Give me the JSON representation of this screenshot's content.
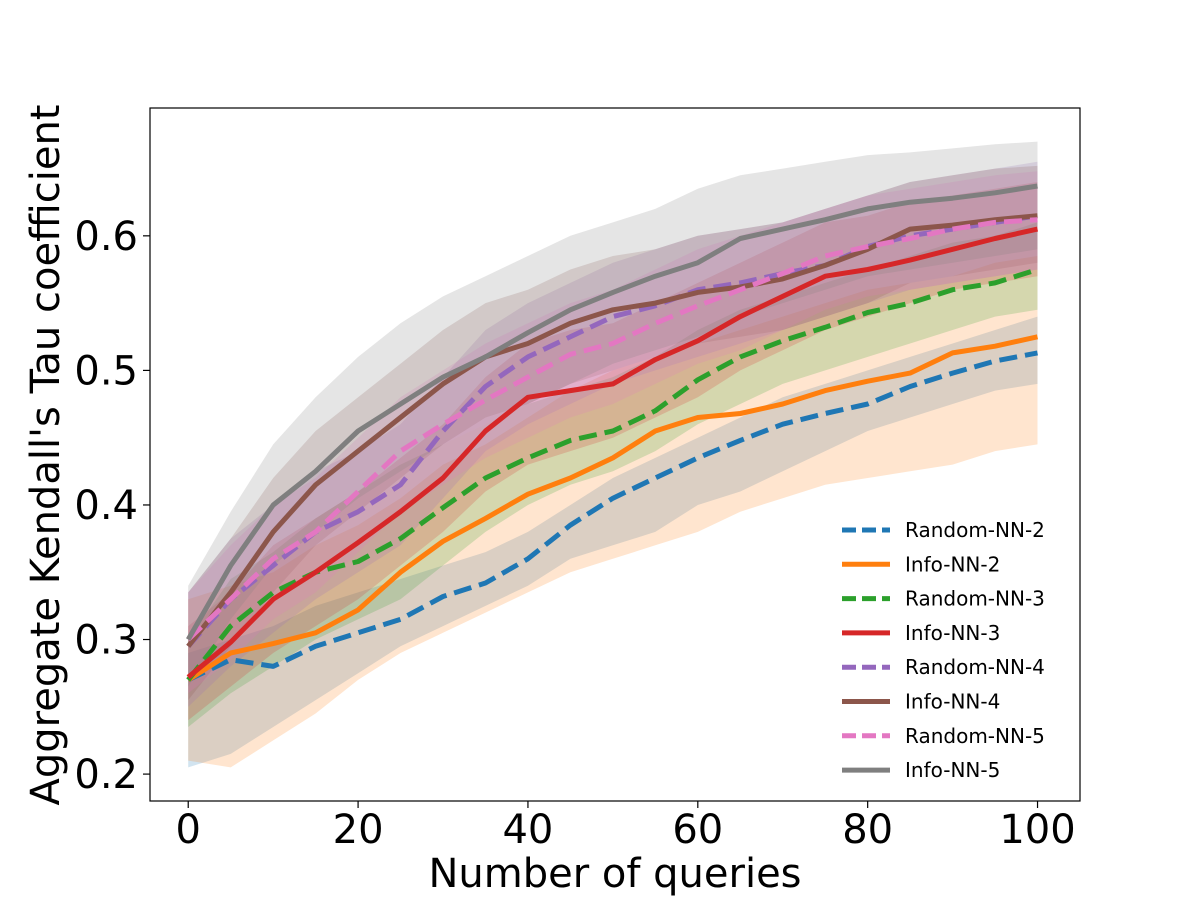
{
  "chart_data": {
    "type": "line",
    "title": "",
    "xlabel": "Number of queries",
    "ylabel": "Aggregate Kendall's Tau coefficient",
    "xlim": [
      -4.5,
      105
    ],
    "ylim": [
      0.18,
      0.695
    ],
    "xticks": [
      0,
      20,
      40,
      60,
      80,
      100
    ],
    "yticks": [
      0.2,
      0.3,
      0.4,
      0.5,
      0.6
    ],
    "xtick_labels": [
      "0",
      "20",
      "40",
      "60",
      "80",
      "100"
    ],
    "ytick_labels": [
      "0.2",
      "0.3",
      "0.4",
      "0.5",
      "0.6"
    ],
    "grid": false,
    "legend_position": "lower-right",
    "x": [
      0,
      5,
      10,
      15,
      20,
      25,
      30,
      35,
      40,
      45,
      50,
      55,
      60,
      65,
      70,
      75,
      80,
      85,
      90,
      95,
      100
    ],
    "series": [
      {
        "name": "Random-NN-2",
        "color": "#1f77b4",
        "dash": true,
        "values": [
          0.27,
          0.285,
          0.28,
          0.295,
          0.305,
          0.315,
          0.332,
          0.342,
          0.36,
          0.385,
          0.405,
          0.42,
          0.435,
          0.448,
          0.46,
          0.468,
          0.475,
          0.488,
          0.498,
          0.507,
          0.513
        ],
        "lower": [
          0.205,
          0.215,
          0.235,
          0.255,
          0.275,
          0.295,
          0.31,
          0.325,
          0.34,
          0.36,
          0.37,
          0.38,
          0.4,
          0.41,
          0.425,
          0.44,
          0.455,
          0.465,
          0.475,
          0.485,
          0.49
        ],
        "upper": [
          0.29,
          0.3,
          0.31,
          0.325,
          0.335,
          0.345,
          0.355,
          0.365,
          0.38,
          0.4,
          0.42,
          0.435,
          0.45,
          0.465,
          0.48,
          0.49,
          0.5,
          0.51,
          0.52,
          0.53,
          0.54
        ]
      },
      {
        "name": "Info-NN-2",
        "color": "#ff7f0e",
        "dash": false,
        "values": [
          0.27,
          0.29,
          0.297,
          0.305,
          0.322,
          0.35,
          0.373,
          0.39,
          0.408,
          0.42,
          0.435,
          0.455,
          0.465,
          0.468,
          0.475,
          0.485,
          0.492,
          0.498,
          0.513,
          0.518,
          0.525
        ],
        "lower": [
          0.21,
          0.205,
          0.225,
          0.245,
          0.27,
          0.29,
          0.305,
          0.32,
          0.335,
          0.35,
          0.36,
          0.37,
          0.38,
          0.395,
          0.405,
          0.415,
          0.42,
          0.425,
          0.43,
          0.44,
          0.445
        ],
        "upper": [
          0.33,
          0.34,
          0.35,
          0.37,
          0.385,
          0.405,
          0.43,
          0.445,
          0.465,
          0.485,
          0.5,
          0.51,
          0.52,
          0.53,
          0.54,
          0.55,
          0.56,
          0.565,
          0.57,
          0.58,
          0.585
        ]
      },
      {
        "name": "Random-NN-3",
        "color": "#2ca02c",
        "dash": true,
        "values": [
          0.27,
          0.31,
          0.335,
          0.35,
          0.358,
          0.375,
          0.398,
          0.42,
          0.435,
          0.448,
          0.455,
          0.47,
          0.493,
          0.51,
          0.522,
          0.532,
          0.543,
          0.55,
          0.56,
          0.565,
          0.575
        ],
        "lower": [
          0.235,
          0.26,
          0.28,
          0.3,
          0.315,
          0.33,
          0.355,
          0.38,
          0.4,
          0.415,
          0.425,
          0.44,
          0.46,
          0.475,
          0.49,
          0.5,
          0.51,
          0.52,
          0.53,
          0.54,
          0.545
        ],
        "upper": [
          0.3,
          0.345,
          0.365,
          0.39,
          0.41,
          0.43,
          0.445,
          0.46,
          0.475,
          0.485,
          0.495,
          0.51,
          0.53,
          0.545,
          0.555,
          0.565,
          0.575,
          0.585,
          0.595,
          0.6,
          0.61
        ]
      },
      {
        "name": "Info-NN-3",
        "color": "#d62728",
        "dash": false,
        "values": [
          0.272,
          0.298,
          0.33,
          0.35,
          0.372,
          0.395,
          0.42,
          0.455,
          0.48,
          0.485,
          0.49,
          0.508,
          0.522,
          0.54,
          0.555,
          0.57,
          0.575,
          0.582,
          0.59,
          0.598,
          0.605
        ],
        "lower": [
          0.24,
          0.265,
          0.29,
          0.31,
          0.33,
          0.355,
          0.38,
          0.41,
          0.43,
          0.44,
          0.45,
          0.465,
          0.48,
          0.5,
          0.515,
          0.53,
          0.54,
          0.55,
          0.56,
          0.565,
          0.57
        ],
        "upper": [
          0.31,
          0.335,
          0.37,
          0.39,
          0.41,
          0.435,
          0.46,
          0.495,
          0.52,
          0.53,
          0.535,
          0.55,
          0.565,
          0.58,
          0.595,
          0.61,
          0.615,
          0.625,
          0.63,
          0.635,
          0.64
        ]
      },
      {
        "name": "Random-NN-4",
        "color": "#9467bd",
        "dash": true,
        "values": [
          0.295,
          0.33,
          0.355,
          0.38,
          0.395,
          0.415,
          0.455,
          0.488,
          0.51,
          0.525,
          0.54,
          0.548,
          0.56,
          0.565,
          0.572,
          0.578,
          0.592,
          0.6,
          0.605,
          0.61,
          0.615
        ],
        "lower": [
          0.25,
          0.28,
          0.305,
          0.33,
          0.35,
          0.37,
          0.405,
          0.44,
          0.46,
          0.475,
          0.49,
          0.5,
          0.51,
          0.52,
          0.53,
          0.54,
          0.55,
          0.56,
          0.565,
          0.57,
          0.575
        ],
        "upper": [
          0.335,
          0.375,
          0.4,
          0.425,
          0.44,
          0.46,
          0.495,
          0.53,
          0.55,
          0.565,
          0.58,
          0.59,
          0.6,
          0.605,
          0.61,
          0.62,
          0.63,
          0.64,
          0.645,
          0.65,
          0.655
        ]
      },
      {
        "name": "Info-NN-4",
        "color": "#8c564b",
        "dash": false,
        "values": [
          0.295,
          0.335,
          0.38,
          0.415,
          0.44,
          0.465,
          0.49,
          0.51,
          0.52,
          0.535,
          0.545,
          0.55,
          0.558,
          0.562,
          0.568,
          0.578,
          0.59,
          0.605,
          0.608,
          0.612,
          0.615
        ],
        "lower": [
          0.255,
          0.295,
          0.335,
          0.37,
          0.395,
          0.42,
          0.445,
          0.465,
          0.475,
          0.49,
          0.5,
          0.51,
          0.52,
          0.525,
          0.53,
          0.54,
          0.55,
          0.565,
          0.57,
          0.575,
          0.58
        ],
        "upper": [
          0.335,
          0.375,
          0.42,
          0.455,
          0.48,
          0.505,
          0.53,
          0.55,
          0.56,
          0.575,
          0.585,
          0.59,
          0.6,
          0.605,
          0.61,
          0.62,
          0.63,
          0.64,
          0.645,
          0.65,
          0.652
        ]
      },
      {
        "name": "Random-NN-5",
        "color": "#e377c2",
        "dash": true,
        "values": [
          0.3,
          0.33,
          0.36,
          0.38,
          0.41,
          0.44,
          0.46,
          0.478,
          0.495,
          0.512,
          0.52,
          0.535,
          0.548,
          0.56,
          0.572,
          0.585,
          0.592,
          0.598,
          0.605,
          0.61,
          0.612
        ],
        "lower": [
          0.26,
          0.285,
          0.315,
          0.335,
          0.365,
          0.395,
          0.415,
          0.435,
          0.45,
          0.465,
          0.475,
          0.49,
          0.505,
          0.515,
          0.53,
          0.545,
          0.555,
          0.56,
          0.565,
          0.57,
          0.575
        ],
        "upper": [
          0.335,
          0.37,
          0.4,
          0.42,
          0.45,
          0.48,
          0.5,
          0.52,
          0.535,
          0.55,
          0.56,
          0.575,
          0.59,
          0.6,
          0.61,
          0.62,
          0.63,
          0.635,
          0.64,
          0.645,
          0.648
        ]
      },
      {
        "name": "Info-NN-5",
        "color": "#7f7f7f",
        "dash": false,
        "values": [
          0.3,
          0.355,
          0.4,
          0.425,
          0.455,
          0.475,
          0.495,
          0.51,
          0.528,
          0.545,
          0.558,
          0.57,
          0.58,
          0.598,
          0.605,
          0.612,
          0.62,
          0.625,
          0.628,
          0.632,
          0.637
        ],
        "lower": [
          0.265,
          0.315,
          0.355,
          0.38,
          0.405,
          0.425,
          0.445,
          0.46,
          0.475,
          0.49,
          0.505,
          0.515,
          0.525,
          0.54,
          0.55,
          0.56,
          0.57,
          0.575,
          0.58,
          0.585,
          0.59
        ],
        "upper": [
          0.34,
          0.395,
          0.445,
          0.48,
          0.51,
          0.535,
          0.555,
          0.57,
          0.585,
          0.6,
          0.61,
          0.62,
          0.635,
          0.645,
          0.65,
          0.655,
          0.66,
          0.662,
          0.665,
          0.668,
          0.67
        ]
      }
    ]
  }
}
